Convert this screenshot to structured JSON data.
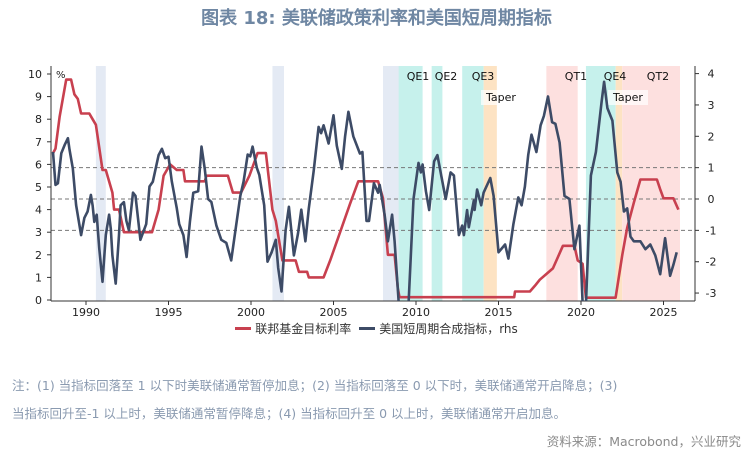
{
  "title": "图表 18: 美联储政策利率和美国短周期指标",
  "chart_data": {
    "type": "line",
    "title": "图表 18: 美联储政策利率和美国短周期指标",
    "left_axis": {
      "unit_label": "%",
      "range": [
        0,
        10
      ],
      "ticks": [
        "0",
        "1",
        "2",
        "3",
        "4",
        "5",
        "6",
        "7",
        "8",
        "9",
        "10"
      ]
    },
    "right_axis": {
      "range": [
        -3,
        4
      ],
      "ticks": [
        "-3",
        "-2",
        "-1",
        "0",
        "1",
        "2",
        "3",
        "4"
      ]
    },
    "x_axis": {
      "range": [
        1988,
        2026
      ],
      "ticks": [
        "1990",
        "1995",
        "2000",
        "2005",
        "2010",
        "2015",
        "2020",
        "2025"
      ]
    },
    "reference_lines_rhs": [
      1,
      0,
      -1
    ],
    "grid": false,
    "legend_position": "bottom",
    "colors": {
      "fed_rate": "#c8404f",
      "index": "#3d4b66",
      "recession": "#e4eaf4",
      "qe": "#c6f1ec",
      "taper": "#fde3c3",
      "qt": "#fde0df"
    },
    "shaded_periods": [
      {
        "kind": "recession",
        "start": 1990.6,
        "end": 1991.2
      },
      {
        "kind": "recession",
        "start": 2001.3,
        "end": 2002.0
      },
      {
        "kind": "recession",
        "start": 2008.0,
        "end": 2009.0
      },
      {
        "kind": "qe",
        "label": "QE1",
        "start": 2008.95,
        "end": 2010.4
      },
      {
        "kind": "qe",
        "label": "QE2",
        "start": 2010.95,
        "end": 2011.6
      },
      {
        "kind": "qe",
        "label": "QE3",
        "start": 2012.8,
        "end": 2014.1
      },
      {
        "kind": "taper",
        "label": "Taper",
        "start": 2014.1,
        "end": 2014.9
      },
      {
        "kind": "qt",
        "label": "QT1",
        "start": 2017.9,
        "end": 2019.8
      },
      {
        "kind": "qe",
        "label": "QE4",
        "start": 2020.3,
        "end": 2022.1
      },
      {
        "kind": "taper",
        "label": "Taper",
        "start": 2022.1,
        "end": 2022.5
      },
      {
        "kind": "qt",
        "label": "QT2",
        "start": 2022.5,
        "end": 2026.0
      }
    ],
    "series": [
      {
        "name": "联邦基金目标利率",
        "axis": "left",
        "x": [
          1988.0,
          1988.15,
          1988.4,
          1988.8,
          1989.1,
          1989.3,
          1989.5,
          1989.7,
          1990.2,
          1990.4,
          1990.6,
          1991.0,
          1991.2,
          1991.6,
          1991.7,
          1992.0,
          1992.3,
          1994.0,
          1994.4,
          1994.7,
          1995.1,
          1995.5,
          1995.9,
          1996.0,
          1997.2,
          1997.3,
          1998.6,
          1998.9,
          1999.4,
          1999.9,
          2000.4,
          2000.9,
          2001.3,
          2001.5,
          2001.9,
          2002.7,
          2002.9,
          2003.4,
          2003.5,
          2004.4,
          2004.8,
          2005.4,
          2006.0,
          2006.5,
          2007.7,
          2008.0,
          2008.3,
          2008.7,
          2008.9,
          2009.0,
          2015.95,
          2016.0,
          2016.9,
          2017.2,
          2017.5,
          2017.9,
          2018.3,
          2018.6,
          2018.9,
          2019.6,
          2019.8,
          2020.1,
          2020.3,
          2022.1,
          2022.5,
          2022.8,
          2023.2,
          2023.6,
          2024.6,
          2024.8,
          2025.0,
          2025.6,
          2025.9
        ],
        "y": [
          6.5,
          6.7,
          8.1,
          9.75,
          9.75,
          9.1,
          8.9,
          8.25,
          8.25,
          8.0,
          7.75,
          5.75,
          5.75,
          4.75,
          4.0,
          4.0,
          3.0,
          3.0,
          4.0,
          5.5,
          6.0,
          5.75,
          5.75,
          5.25,
          5.25,
          5.5,
          5.5,
          4.75,
          4.75,
          5.5,
          6.5,
          6.5,
          4.0,
          3.5,
          1.75,
          1.75,
          1.25,
          1.25,
          1.0,
          1.0,
          1.75,
          3.0,
          4.25,
          5.25,
          5.25,
          4.5,
          2.0,
          2.0,
          0.5,
          0.125,
          0.125,
          0.375,
          0.375,
          0.625,
          0.9,
          1.15,
          1.4,
          1.9,
          2.4,
          2.4,
          1.75,
          1.6,
          0.1,
          0.1,
          2.0,
          3.2,
          4.3,
          5.33,
          5.33,
          4.9,
          4.5,
          4.5,
          4.0
        ]
      },
      {
        "name": "美国短周期合成指标, rhs",
        "axis": "right",
        "x": [
          1988.0,
          1988.15,
          1988.3,
          1988.5,
          1988.7,
          1988.9,
          1989.0,
          1989.2,
          1989.4,
          1989.7,
          1989.9,
          1990.1,
          1990.3,
          1990.4,
          1990.5,
          1990.65,
          1990.8,
          1991.0,
          1991.2,
          1991.4,
          1991.5,
          1991.6,
          1991.8,
          1992.0,
          1992.1,
          1992.3,
          1992.45,
          1992.6,
          1992.85,
          1993.0,
          1993.3,
          1993.65,
          1993.85,
          1994.05,
          1994.4,
          1994.6,
          1994.8,
          1995.0,
          1995.2,
          1995.5,
          1995.65,
          1995.9,
          1996.1,
          1996.3,
          1996.5,
          1996.8,
          1997.0,
          1997.2,
          1997.4,
          1997.6,
          1997.9,
          1998.2,
          1998.5,
          1998.8,
          1999.05,
          1999.35,
          1999.55,
          1999.8,
          1999.95,
          2000.1,
          2000.35,
          2000.5,
          2000.8,
          2001.0,
          2001.25,
          2001.5,
          2001.65,
          2001.85,
          2002.1,
          2002.3,
          2002.6,
          2002.85,
          2003.05,
          2003.3,
          2003.5,
          2003.8,
          2004.1,
          2004.25,
          2004.4,
          2004.7,
          2005.0,
          2005.2,
          2005.5,
          2005.7,
          2005.9,
          2006.2,
          2006.6,
          2006.75,
          2007.0,
          2007.15,
          2007.45,
          2007.7,
          2007.8,
          2008.1,
          2008.3,
          2008.55,
          2008.7,
          2008.95,
          2009.1,
          2009.55,
          2009.85,
          2010.15,
          2010.3,
          2010.4,
          2010.6,
          2010.8,
          2011.1,
          2011.3,
          2011.6,
          2011.8,
          2012.1,
          2012.3,
          2012.6,
          2012.8,
          2012.9,
          2013.1,
          2013.2,
          2013.5,
          2013.55,
          2013.7,
          2013.95,
          2014.1,
          2014.5,
          2014.7,
          2015.0,
          2015.4,
          2015.6,
          2015.9,
          2016.2,
          2016.4,
          2016.6,
          2016.8,
          2017.0,
          2017.3,
          2017.55,
          2017.75,
          2018.0,
          2018.25,
          2018.45,
          2018.7,
          2019.0,
          2019.3,
          2019.6,
          2019.9,
          2020.1,
          2020.3,
          2020.6,
          2020.9,
          2021.25,
          2021.4,
          2021.6,
          2021.9,
          2022.2,
          2022.4,
          2022.6,
          2022.8,
          2023.0,
          2023.2,
          2023.6,
          2023.9,
          2024.2,
          2024.5,
          2024.8,
          2025.1,
          2025.4,
          2025.6,
          2025.8
        ],
        "y": [
          1.5,
          0.45,
          0.5,
          1.46,
          1.72,
          1.94,
          1.58,
          0.98,
          -0.19,
          -1.15,
          -0.6,
          -0.4,
          0.13,
          -0.2,
          -0.73,
          -0.5,
          -1.56,
          -2.64,
          -1.15,
          -0.5,
          -0.95,
          -1.8,
          -2.7,
          -1.15,
          -0.2,
          -0.1,
          -0.7,
          -1.0,
          0.2,
          0.1,
          -1.3,
          -0.8,
          0.4,
          0.55,
          1.4,
          1.6,
          1.3,
          1.35,
          0.56,
          -0.3,
          -0.8,
          -1.15,
          -1.85,
          -0.73,
          0.2,
          0.25,
          1.67,
          0.95,
          0.0,
          -0.1,
          -0.85,
          -1.3,
          -1.4,
          -1.96,
          -1.03,
          0.1,
          0.56,
          1.42,
          1.36,
          1.67,
          1.0,
          0.77,
          -0.2,
          -2.0,
          -1.7,
          -1.3,
          -2.2,
          -2.95,
          -1.0,
          -0.25,
          -1.8,
          -1.1,
          -0.34,
          -1.35,
          -0.3,
          0.9,
          2.3,
          2.1,
          2.35,
          1.77,
          2.67,
          1.7,
          0.96,
          2.0,
          2.78,
          2.0,
          1.45,
          1.5,
          -0.7,
          -0.7,
          0.5,
          0.2,
          0.45,
          -0.5,
          -1.35,
          -0.5,
          -1.35,
          -3.3,
          -3.4,
          -3.3,
          0.0,
          1.15,
          0.85,
          1.1,
          0.25,
          -0.35,
          1.2,
          1.4,
          0.55,
          0.0,
          0.85,
          0.75,
          -1.15,
          -0.85,
          -1.15,
          -0.35,
          -0.9,
          -0.05,
          -0.35,
          0.3,
          -0.2,
          0.2,
          0.67,
          0.1,
          -1.7,
          -1.45,
          -1.9,
          -0.8,
          0.05,
          -0.2,
          0.4,
          1.4,
          2.05,
          1.5,
          2.35,
          2.65,
          3.27,
          2.45,
          2.4,
          1.8,
          0.1,
          0.0,
          -1.6,
          -0.85,
          -3.3,
          -3.4,
          0.75,
          1.5,
          3.1,
          3.74,
          2.9,
          2.5,
          0.85,
          0.55,
          -0.4,
          -0.3,
          -1.2,
          -1.35,
          -1.35,
          -1.6,
          -1.45,
          -1.8,
          -2.4,
          -1.25,
          -2.45,
          -2.1,
          -1.7
        ]
      }
    ]
  },
  "legend": [
    {
      "label": "联邦基金目标利率",
      "color": "#c8404f"
    },
    {
      "label": "美国短周期合成指标，rhs",
      "color": "#3d4b66"
    }
  ],
  "notes": {
    "line1": "注：(1) 当指标回落至 1 以下时美联储通常暂停加息；(2) 当指标回落至 0 以下时，美联储通常开启降息；(3)",
    "line2": "当指标回升至-1 以上时，美联储通常暂停降息；(4) 当指标回升至 0 以上时，美联储通常开启加息。"
  },
  "source": "资料来源：Macrobond，兴业研究"
}
